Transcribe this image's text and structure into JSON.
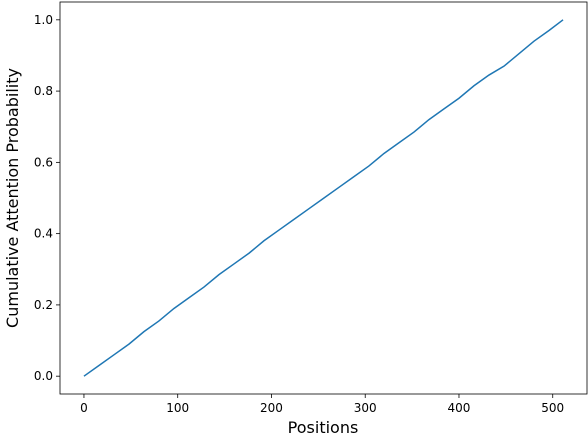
{
  "chart_data": {
    "type": "line",
    "x_label": "Positions",
    "y_label": "Cumulative Attention Probability",
    "x": [
      0,
      16,
      32,
      48,
      64,
      80,
      96,
      112,
      128,
      144,
      160,
      176,
      192,
      208,
      224,
      240,
      256,
      272,
      288,
      304,
      320,
      336,
      352,
      368,
      384,
      400,
      416,
      432,
      448,
      464,
      480,
      496,
      511
    ],
    "series": [
      {
        "color": "#1f77b4",
        "values": [
          0.0,
          0.03,
          0.06,
          0.09,
          0.125,
          0.155,
          0.19,
          0.22,
          0.25,
          0.285,
          0.315,
          0.345,
          0.38,
          0.41,
          0.44,
          0.47,
          0.5,
          0.53,
          0.56,
          0.59,
          0.625,
          0.655,
          0.685,
          0.72,
          0.75,
          0.78,
          0.815,
          0.845,
          0.87,
          0.905,
          0.94,
          0.97,
          1.0
        ]
      }
    ],
    "xlim": [
      -25.55,
      536.55
    ],
    "ylim": [
      -0.05,
      1.05
    ],
    "xticks": [
      0,
      100,
      200,
      300,
      400,
      500
    ],
    "yticks": [
      {
        "value": 0,
        "label": "0.0"
      },
      0.2,
      0.4,
      0.6,
      0.8,
      {
        "value": 1,
        "label": "1.0"
      }
    ],
    "grid": false
  }
}
